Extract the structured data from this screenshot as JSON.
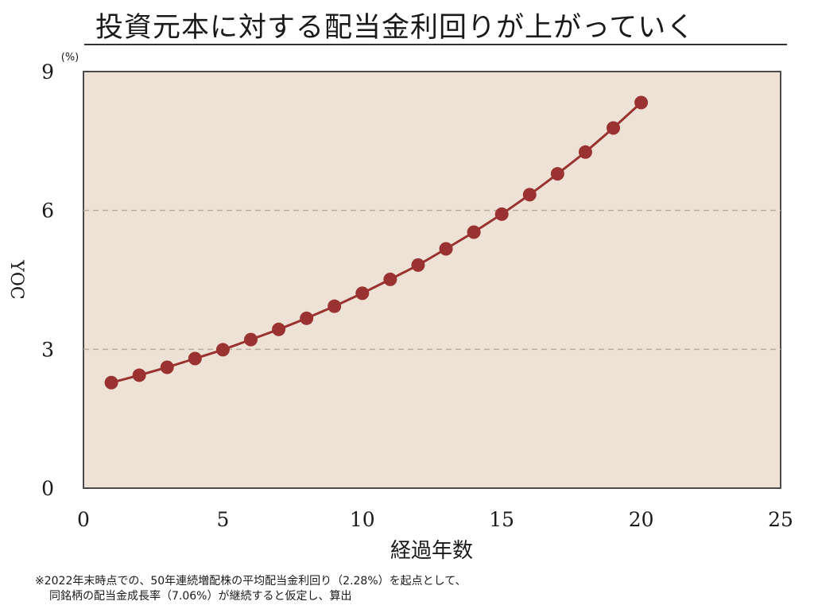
{
  "page": {
    "title": "投資元本に対する配当金利回りが上がっていく",
    "footnote_line1": "※2022年末時点での、50年連続増配株の平均配当金利回り（2.28%）を起点として、",
    "footnote_line2": "同銘柄の配当金成長率（7.06%）が継続すると仮定し、算出"
  },
  "colors": {
    "plot_background": "#ede2d5",
    "series": "#9b3232",
    "grid": "#b8aca0"
  },
  "chart_data": {
    "type": "line",
    "title": "投資元本に対する配当金利回りが上がっていく",
    "xlabel": "経過年数",
    "ylabel": "YOC",
    "yunit": "(%)",
    "xlim": [
      0,
      25
    ],
    "ylim": [
      0,
      9
    ],
    "xticks": [
      0,
      5,
      10,
      15,
      20,
      25
    ],
    "yticks": [
      0,
      3,
      6,
      9
    ],
    "grid": "horizontal dashed at 3 and 6",
    "series": [
      {
        "x": [
          1,
          2,
          3,
          4,
          5,
          6,
          7,
          8,
          9,
          10,
          11,
          12,
          13,
          14,
          15,
          16,
          17,
          18,
          19,
          20
        ],
        "y": [
          2.28,
          2.44,
          2.61,
          2.8,
          2.99,
          3.21,
          3.43,
          3.67,
          3.93,
          4.21,
          4.51,
          4.82,
          5.17,
          5.53,
          5.92,
          6.34,
          6.79,
          7.26,
          7.78,
          8.33
        ]
      }
    ]
  }
}
